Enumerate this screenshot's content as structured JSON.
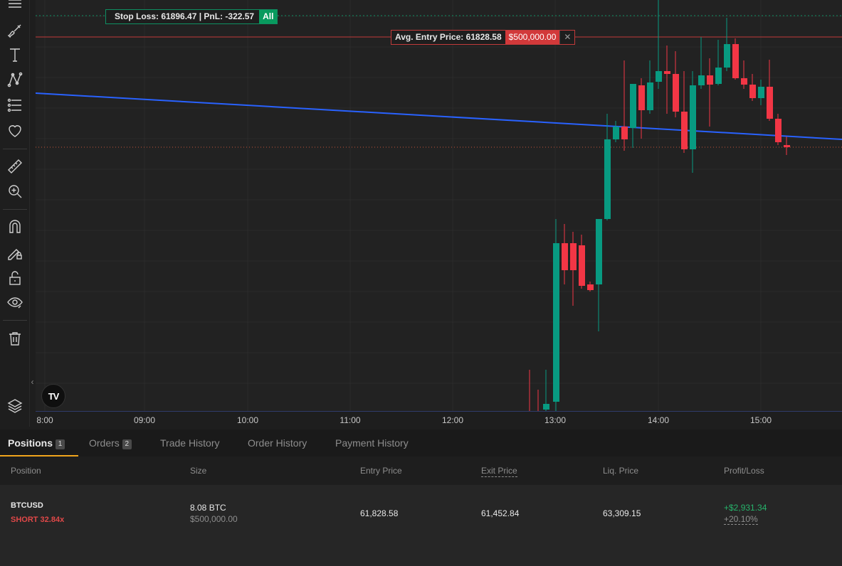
{
  "chart": {
    "time_ticks": [
      "8:00",
      "09:00",
      "10:00",
      "11:00",
      "12:00",
      "13:00",
      "14:00",
      "15:00"
    ],
    "stop_loss_label": "Stop Loss: 61896.47  |  PnL: -322.57",
    "stop_loss_all": "All",
    "entry_label": "Avg. Entry Price: 61828.58",
    "entry_amount": "$500,000.00",
    "entry_close": "✕",
    "logo": "TV",
    "collapse": "‹",
    "colors": {
      "up": "#089a81",
      "down": "#f23645",
      "trendline": "#2962ff",
      "stop_loss_line": "#0e8f62",
      "entry_line": "#c23a3a"
    }
  },
  "toolbar": {
    "icons": [
      "menu-lines-icon",
      "brush-icon",
      "text-icon",
      "pattern-icon",
      "fib-icon",
      "heart-icon",
      "ruler-icon",
      "zoom-in-icon",
      "magnet-icon",
      "lock-drawing-icon",
      "unlock-icon",
      "eye-icon",
      "trash-icon",
      "layers-icon"
    ]
  },
  "tabs": [
    {
      "label": "Positions",
      "badge": "1"
    },
    {
      "label": "Orders",
      "badge": "2"
    },
    {
      "label": "Trade History"
    },
    {
      "label": "Order History"
    },
    {
      "label": "Payment History"
    }
  ],
  "columns": {
    "position": "Position",
    "size": "Size",
    "entry": "Entry Price",
    "exit": "Exit Price",
    "liq": "Liq. Price",
    "pnl": "Profit/Loss"
  },
  "position": {
    "symbol": "BTCUSD",
    "side": "SHORT 32.84x",
    "size": "8.08 BTC",
    "size_usd": "$500,000.00",
    "entry": "61,828.58",
    "exit": "61,452.84",
    "liq": "63,309.15",
    "pnl": "+$2,931.34",
    "pnl_pct": "+20.10%"
  }
}
